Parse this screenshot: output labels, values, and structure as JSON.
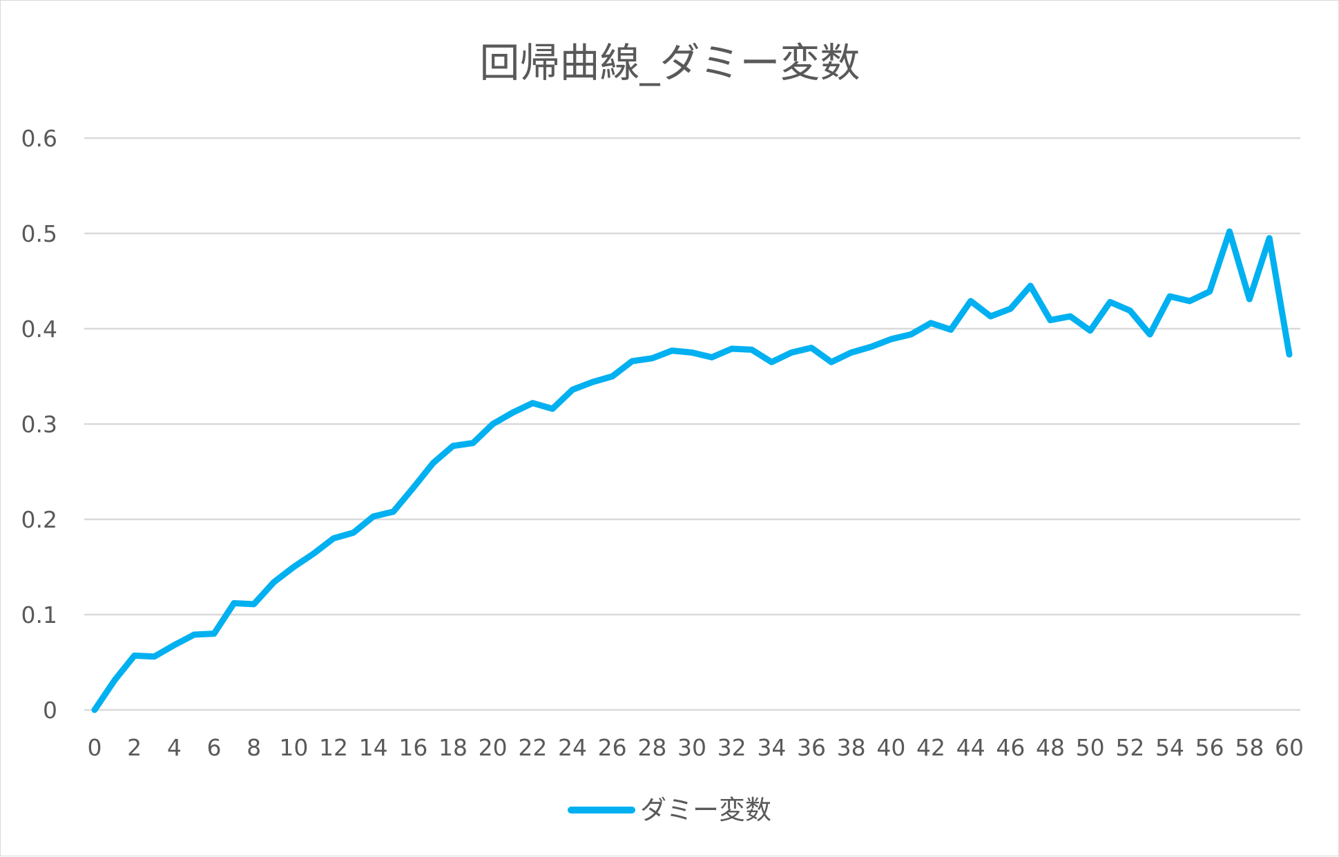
{
  "chart_data": {
    "type": "line",
    "title": "回帰曲線_ダミー変数",
    "xlabel": "",
    "ylabel": "",
    "x": [
      0,
      1,
      2,
      3,
      4,
      5,
      6,
      7,
      8,
      9,
      10,
      11,
      12,
      13,
      14,
      15,
      16,
      17,
      18,
      19,
      20,
      21,
      22,
      23,
      24,
      25,
      26,
      27,
      28,
      29,
      30,
      31,
      32,
      33,
      34,
      35,
      36,
      37,
      38,
      39,
      40,
      41,
      42,
      43,
      44,
      45,
      46,
      47,
      48,
      49,
      50,
      51,
      52,
      53,
      54,
      55,
      56,
      57,
      58,
      59,
      60
    ],
    "x_tick_labels": [
      "0",
      "2",
      "4",
      "6",
      "8",
      "10",
      "12",
      "14",
      "16",
      "18",
      "20",
      "22",
      "24",
      "26",
      "28",
      "30",
      "32",
      "34",
      "36",
      "38",
      "40",
      "42",
      "44",
      "46",
      "48",
      "50",
      "52",
      "54",
      "56",
      "58",
      "60"
    ],
    "y_tick_labels": [
      "0",
      "0.1",
      "0.2",
      "0.3",
      "0.4",
      "0.5",
      "0.6"
    ],
    "ylim": [
      0,
      0.6
    ],
    "xlim": [
      0,
      60
    ],
    "grid": true,
    "legend_position": "bottom",
    "series": [
      {
        "name": "ダミー変数",
        "color": "#00b0f0",
        "values": [
          0,
          0.031,
          0.057,
          0.056,
          0.068,
          0.079,
          0.08,
          0.112,
          0.111,
          0.134,
          0.15,
          0.164,
          0.18,
          0.186,
          0.203,
          0.208,
          0.233,
          0.259,
          0.277,
          0.28,
          0.3,
          0.312,
          0.322,
          0.316,
          0.336,
          0.344,
          0.35,
          0.366,
          0.369,
          0.377,
          0.375,
          0.37,
          0.379,
          0.378,
          0.365,
          0.375,
          0.38,
          0.365,
          0.375,
          0.381,
          0.389,
          0.394,
          0.406,
          0.399,
          0.429,
          0.413,
          0.421,
          0.445,
          0.409,
          0.413,
          0.398,
          0.428,
          0.419,
          0.394,
          0.434,
          0.429,
          0.439,
          0.502,
          0.431,
          0.495,
          0.373
        ]
      }
    ]
  }
}
